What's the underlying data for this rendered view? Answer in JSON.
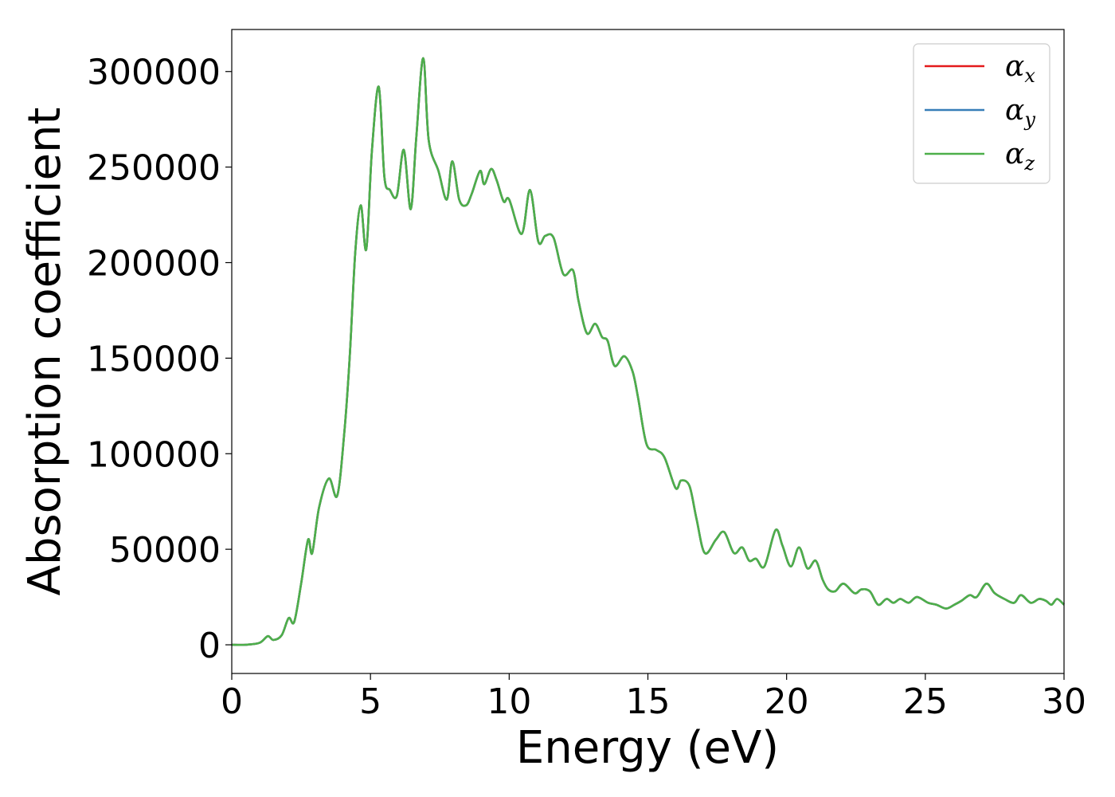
{
  "chart_data": {
    "type": "line",
    "xlabel": "Energy (eV)",
    "ylabel": "Absorption coefficient",
    "xlim": [
      0,
      30
    ],
    "ylim": [
      -15000,
      322000
    ],
    "xticks": [
      "0",
      "5",
      "10",
      "15",
      "20",
      "25",
      "30"
    ],
    "yticks": [
      "0",
      "50000",
      "100000",
      "150000",
      "200000",
      "250000",
      "300000"
    ],
    "grid": false,
    "legend_position": "top-right",
    "series": [
      {
        "name": "α",
        "subscript": "x",
        "color": "#e41a1c"
      },
      {
        "name": "α",
        "subscript": "y",
        "color": "#377eb8"
      },
      {
        "name": "α",
        "subscript": "z",
        "color": "#4daf4a"
      }
    ],
    "x": [
      0,
      0.5,
      1.0,
      1.3,
      1.5,
      1.8,
      2.05,
      2.25,
      2.5,
      2.75,
      2.9,
      3.15,
      3.5,
      3.8,
      4.05,
      4.25,
      4.45,
      4.65,
      4.85,
      5.05,
      5.3,
      5.5,
      5.7,
      5.95,
      6.2,
      6.45,
      6.65,
      6.9,
      7.1,
      7.45,
      7.75,
      7.95,
      8.2,
      8.45,
      8.65,
      8.95,
      9.1,
      9.35,
      9.55,
      9.8,
      10.0,
      10.45,
      10.75,
      11.05,
      11.3,
      11.6,
      11.95,
      12.3,
      12.5,
      12.8,
      13.1,
      13.35,
      13.55,
      13.8,
      14.15,
      14.45,
      14.65,
      14.95,
      15.3,
      15.6,
      16.0,
      16.2,
      16.5,
      16.75,
      17.05,
      17.45,
      17.75,
      18.1,
      18.4,
      18.65,
      18.9,
      19.2,
      19.6,
      19.85,
      20.15,
      20.45,
      20.75,
      21.05,
      21.3,
      21.5,
      21.75,
      22.05,
      22.45,
      22.7,
      23.0,
      23.3,
      23.6,
      23.85,
      24.1,
      24.4,
      24.7,
      25.1,
      25.4,
      25.75,
      26.05,
      26.3,
      26.6,
      26.85,
      27.2,
      27.5,
      27.85,
      28.2,
      28.45,
      28.8,
      29.1,
      29.35,
      29.55,
      29.75,
      30.0
    ],
    "values": [
      0,
      0,
      1000,
      4500,
      2500,
      5000,
      14000,
      12000,
      32000,
      55000,
      48000,
      72000,
      87000,
      78000,
      110000,
      150000,
      205000,
      230000,
      207000,
      258000,
      292000,
      245000,
      238000,
      235000,
      259000,
      228000,
      265000,
      307000,
      264000,
      248000,
      233000,
      253000,
      233000,
      230000,
      236000,
      248000,
      241000,
      249000,
      243000,
      232000,
      233000,
      215000,
      238000,
      211000,
      214000,
      213000,
      194000,
      196000,
      180000,
      163000,
      168000,
      161000,
      159000,
      146000,
      151000,
      143000,
      129000,
      105000,
      102000,
      98000,
      82000,
      86000,
      83000,
      66000,
      48000,
      55000,
      59000,
      48000,
      51000,
      44000,
      45000,
      41000,
      60000,
      52000,
      41000,
      51000,
      40000,
      44000,
      34000,
      29000,
      28000,
      32000,
      27000,
      29000,
      28000,
      21000,
      24000,
      22000,
      24000,
      22000,
      25000,
      22000,
      21000,
      19000,
      21000,
      23000,
      26000,
      25000,
      32000,
      27000,
      24000,
      22000,
      26000,
      22000,
      24000,
      23000,
      21000,
      24000,
      21000
    ]
  }
}
